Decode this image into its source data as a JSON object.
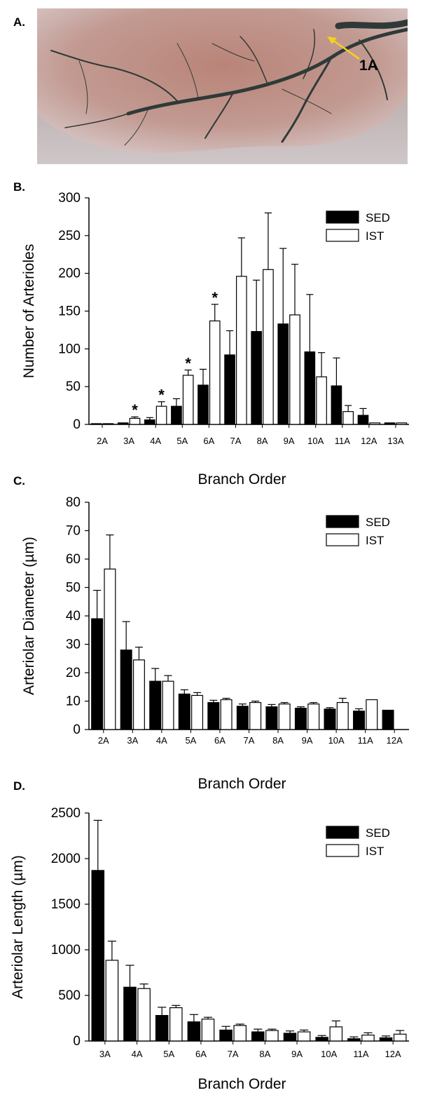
{
  "panels": {
    "a_label": "A.",
    "b_label": "B.",
    "c_label": "C.",
    "d_label": "D.",
    "photo_annotation": "1A"
  },
  "colors": {
    "sed_fill": "#000000",
    "ist_fill": "#ffffff",
    "annotation": "#f4d21f"
  },
  "chart_data": [
    {
      "type": "bar",
      "panel": "B",
      "categories": [
        "2A",
        "3A",
        "4A",
        "5A",
        "6A",
        "7A",
        "8A",
        "9A",
        "10A",
        "11A",
        "12A",
        "13A"
      ],
      "series": [
        {
          "name": "SED",
          "values": [
            1,
            2,
            6,
            24,
            52,
            92,
            123,
            133,
            96,
            51,
            12,
            2
          ],
          "errors": [
            0,
            0,
            3,
            10,
            21,
            32,
            68,
            100,
            76,
            37,
            9,
            0
          ]
        },
        {
          "name": "IST",
          "values": [
            1,
            8,
            24,
            65,
            137,
            196,
            205,
            145,
            63,
            17,
            2,
            2
          ],
          "errors": [
            0,
            2,
            6,
            7,
            22,
            51,
            75,
            67,
            32,
            8,
            0,
            0
          ]
        }
      ],
      "significance": [
        "",
        "*",
        "*",
        "*",
        "*",
        "",
        "",
        "",
        "",
        "",
        "",
        ""
      ],
      "xlabel": "Branch Order",
      "ylabel": "Number of Arterioles",
      "ylim": [
        0,
        300
      ],
      "yticks": [
        0,
        50,
        100,
        150,
        200,
        250,
        300
      ],
      "legend": "top-right"
    },
    {
      "type": "bar",
      "panel": "C",
      "categories": [
        "2A",
        "3A",
        "4A",
        "5A",
        "6A",
        "7A",
        "8A",
        "9A",
        "10A",
        "11A",
        "12A"
      ],
      "series": [
        {
          "name": "SED",
          "values": [
            39,
            28,
            17,
            12.5,
            9.5,
            8.2,
            8,
            7.5,
            7.2,
            6.5,
            6.8
          ],
          "errors": [
            10,
            10,
            4.5,
            1.5,
            0.8,
            0.8,
            0.8,
            0.5,
            0.5,
            0.8,
            0
          ]
        },
        {
          "name": "IST",
          "values": [
            56.5,
            24.5,
            17,
            12,
            10.5,
            9.5,
            9,
            9,
            9.5,
            10.5,
            null
          ],
          "errors": [
            12,
            4.5,
            2,
            1,
            0.5,
            0.5,
            0.5,
            0.5,
            1.5,
            0,
            0
          ]
        }
      ],
      "significance": [],
      "xlabel": "Branch Order",
      "ylabel": "Arteriolar Diameter (µm)",
      "ylim": [
        0,
        80
      ],
      "yticks": [
        0,
        10,
        20,
        30,
        40,
        50,
        60,
        70,
        80
      ],
      "legend": "top-right"
    },
    {
      "type": "bar",
      "panel": "D",
      "categories": [
        "3A",
        "4A",
        "5A",
        "6A",
        "7A",
        "8A",
        "9A",
        "10A",
        "11A",
        "12A"
      ],
      "series": [
        {
          "name": "SED",
          "values": [
            1870,
            590,
            280,
            210,
            120,
            100,
            85,
            40,
            25,
            35
          ],
          "errors": [
            550,
            240,
            90,
            80,
            40,
            30,
            25,
            20,
            20,
            20
          ]
        },
        {
          "name": "IST",
          "values": [
            885,
            575,
            365,
            240,
            170,
            115,
            100,
            155,
            65,
            75
          ],
          "errors": [
            210,
            50,
            25,
            20,
            15,
            15,
            20,
            65,
            25,
            40
          ]
        }
      ],
      "significance": [],
      "xlabel": "Branch Order",
      "ylabel": "Arteriolar Length (µm)",
      "ylim": [
        0,
        2500
      ],
      "yticks": [
        0,
        500,
        1000,
        1500,
        2000,
        2500
      ],
      "legend": "top-right"
    }
  ]
}
